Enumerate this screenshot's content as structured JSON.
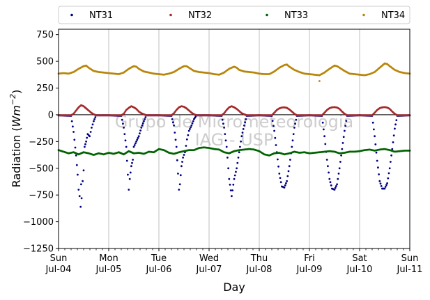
{
  "chart_data": {
    "type": "scatter",
    "title": "",
    "xlabel": "Day",
    "ylabel": "Radiation (Wm⁻²)",
    "ylabel_parts": {
      "prefix": "Radiation (",
      "base": "Wm",
      "exp": "−2",
      "suffix": ")"
    },
    "xlim": [
      0,
      7
    ],
    "ylim": [
      -1250,
      800
    ],
    "yticks": [
      -1250,
      -1000,
      -750,
      -500,
      -250,
      0,
      250,
      500,
      750
    ],
    "ytick_labels": [
      "−1250",
      "−1000",
      "−750",
      "−500",
      "−250",
      "0",
      "250",
      "500",
      "750"
    ],
    "xticks": [
      {
        "day": "Sun",
        "date": "Jul-04"
      },
      {
        "day": "Mon",
        "date": "Jul-05"
      },
      {
        "day": "Tue",
        "date": "Jul-06"
      },
      {
        "day": "Wed",
        "date": "Jul-07"
      },
      {
        "day": "Thu",
        "date": "Jul-08"
      },
      {
        "day": "Fri",
        "date": "Jul-09"
      },
      {
        "day": "Sat",
        "date": "Jul-10"
      },
      {
        "day": "Sun",
        "date": "Jul-11"
      }
    ],
    "grid": "vertical",
    "legend_placement": "above plot, single row",
    "watermark": [
      "Grupo de Micrometeorologia",
      "IAG - USP"
    ],
    "series": [
      {
        "name": "NT31",
        "color": "#000080",
        "x": [
          0.0,
          0.25,
          0.3,
          0.35,
          0.38,
          0.4,
          0.42,
          0.44,
          0.45,
          0.46,
          0.48,
          0.5,
          0.52,
          0.55,
          0.58,
          0.62,
          0.66,
          0.7,
          0.75,
          1.0,
          1.25,
          1.3,
          1.35,
          1.38,
          1.4,
          1.42,
          1.45,
          1.48,
          1.5,
          1.55,
          1.6,
          1.65,
          1.7,
          1.75,
          2.0,
          2.25,
          2.3,
          2.35,
          2.38,
          2.4,
          2.42,
          2.45,
          2.48,
          2.52,
          2.56,
          2.6,
          2.65,
          2.7,
          2.75,
          3.0,
          3.25,
          3.3,
          3.35,
          3.4,
          3.45,
          3.5,
          3.55,
          3.6,
          3.65,
          3.7,
          3.75,
          4.0,
          4.25,
          4.3,
          4.35,
          4.4,
          4.45,
          4.5,
          4.55,
          4.6,
          4.65,
          4.7,
          4.75,
          5.0,
          5.25,
          5.3,
          5.35,
          5.4,
          5.45,
          5.5,
          5.55,
          5.6,
          5.65,
          5.7,
          5.75,
          6.0,
          6.25,
          6.3,
          6.35,
          6.4,
          6.45,
          6.5,
          6.55,
          6.6,
          6.65,
          6.7,
          6.75,
          7.0
        ],
        "y": [
          -5,
          -10,
          -160,
          -380,
          -560,
          -700,
          -760,
          -860,
          -650,
          -780,
          -620,
          -520,
          -300,
          -250,
          -180,
          -200,
          -120,
          -60,
          -5,
          -5,
          -10,
          -120,
          -300,
          -560,
          -700,
          -600,
          -480,
          -420,
          -300,
          -250,
          -200,
          -120,
          -60,
          -5,
          -5,
          -10,
          -100,
          -300,
          -550,
          -700,
          -650,
          -480,
          -400,
          -350,
          -230,
          -150,
          -100,
          -40,
          -5,
          -5,
          -10,
          -120,
          -300,
          -600,
          -760,
          -600,
          -500,
          -350,
          -200,
          -100,
          -10,
          -5,
          -10,
          -150,
          -350,
          -550,
          -670,
          -680,
          -620,
          -480,
          -300,
          -120,
          -10,
          -5,
          -10,
          -200,
          -420,
          -600,
          -690,
          -700,
          -650,
          -500,
          -320,
          -150,
          -10,
          -5,
          -10,
          -200,
          -430,
          -620,
          -690,
          -690,
          -640,
          -500,
          -320,
          -130,
          -10,
          -5
        ]
      },
      {
        "name": "NT32",
        "color": "#a52a2a",
        "x": [
          0.0,
          0.25,
          0.3,
          0.35,
          0.4,
          0.45,
          0.5,
          0.55,
          0.6,
          0.65,
          0.7,
          0.75,
          1.0,
          1.25,
          1.3,
          1.35,
          1.4,
          1.45,
          1.5,
          1.55,
          1.6,
          1.65,
          1.7,
          1.75,
          2.0,
          2.25,
          2.3,
          2.35,
          2.4,
          2.45,
          2.5,
          2.55,
          2.6,
          2.65,
          2.7,
          2.75,
          3.0,
          3.25,
          3.3,
          3.35,
          3.4,
          3.45,
          3.5,
          3.55,
          3.6,
          3.65,
          3.7,
          3.75,
          4.0,
          4.25,
          4.3,
          4.35,
          4.4,
          4.45,
          4.5,
          4.55,
          4.6,
          4.65,
          4.7,
          4.75,
          5.0,
          5.25,
          5.3,
          5.35,
          5.4,
          5.45,
          5.5,
          5.55,
          5.6,
          5.65,
          5.7,
          5.75,
          6.0,
          6.25,
          6.3,
          6.35,
          6.4,
          6.45,
          6.5,
          6.55,
          6.6,
          6.65,
          6.7,
          6.75,
          7.0
        ],
        "y": [
          -5,
          -5,
          10,
          40,
          70,
          90,
          80,
          60,
          40,
          20,
          5,
          -5,
          -5,
          -5,
          10,
          45,
          65,
          80,
          70,
          55,
          30,
          15,
          5,
          -5,
          -5,
          -5,
          15,
          45,
          70,
          80,
          75,
          60,
          40,
          20,
          5,
          -5,
          -5,
          -5,
          15,
          45,
          70,
          80,
          70,
          55,
          35,
          15,
          5,
          -5,
          -5,
          -5,
          20,
          45,
          60,
          68,
          70,
          65,
          50,
          30,
          10,
          -5,
          -5,
          -5,
          20,
          45,
          62,
          70,
          72,
          68,
          55,
          30,
          10,
          -5,
          -5,
          -5,
          20,
          45,
          62,
          70,
          72,
          68,
          55,
          30,
          10,
          -5,
          -5
        ]
      },
      {
        "name": "NT33",
        "color": "#006400",
        "x": [
          0.0,
          0.1,
          0.2,
          0.3,
          0.4,
          0.5,
          0.6,
          0.7,
          0.8,
          0.9,
          1.0,
          1.1,
          1.2,
          1.3,
          1.4,
          1.5,
          1.6,
          1.7,
          1.8,
          1.9,
          2.0,
          2.1,
          2.2,
          2.3,
          2.4,
          2.5,
          2.6,
          2.7,
          2.8,
          2.9,
          3.0,
          3.1,
          3.2,
          3.3,
          3.4,
          3.5,
          3.6,
          3.7,
          3.8,
          3.9,
          4.0,
          4.1,
          4.2,
          4.3,
          4.4,
          4.5,
          4.6,
          4.7,
          4.8,
          4.9,
          5.0,
          5.1,
          5.2,
          5.3,
          5.4,
          5.5,
          5.6,
          5.7,
          5.8,
          5.9,
          6.0,
          6.1,
          6.2,
          6.3,
          6.4,
          6.5,
          6.6,
          6.7,
          6.8,
          6.9,
          7.0
        ],
        "y": [
          -330,
          -345,
          -360,
          -350,
          -370,
          -350,
          -360,
          -375,
          -360,
          -370,
          -355,
          -365,
          -350,
          -370,
          -340,
          -360,
          -355,
          -365,
          -345,
          -350,
          -320,
          -330,
          -355,
          -365,
          -350,
          -340,
          -330,
          -330,
          -310,
          -305,
          -310,
          -320,
          -325,
          -350,
          -360,
          -340,
          -330,
          -325,
          -320,
          -325,
          -340,
          -370,
          -380,
          -360,
          -355,
          -370,
          -360,
          -345,
          -355,
          -350,
          -360,
          -355,
          -350,
          -345,
          -340,
          -345,
          -360,
          -355,
          -345,
          -345,
          -340,
          -330,
          -325,
          -335,
          -325,
          -320,
          -330,
          -345,
          -340,
          -335,
          -335
        ]
      },
      {
        "name": "NT34",
        "color": "#b8860b",
        "x": [
          0.0,
          0.1,
          0.2,
          0.3,
          0.4,
          0.5,
          0.55,
          0.6,
          0.7,
          0.8,
          0.9,
          1.0,
          1.1,
          1.2,
          1.3,
          1.4,
          1.5,
          1.55,
          1.6,
          1.7,
          1.8,
          1.9,
          2.0,
          2.1,
          2.2,
          2.3,
          2.4,
          2.5,
          2.55,
          2.6,
          2.7,
          2.8,
          2.9,
          3.0,
          3.1,
          3.2,
          3.3,
          3.4,
          3.5,
          3.55,
          3.6,
          3.7,
          3.8,
          3.9,
          4.0,
          4.1,
          4.2,
          4.3,
          4.4,
          4.5,
          4.55,
          4.6,
          4.7,
          4.8,
          4.9,
          5.0,
          5.1,
          5.2,
          5.3,
          5.4,
          5.5,
          5.55,
          5.6,
          5.7,
          5.8,
          5.9,
          6.0,
          6.1,
          6.2,
          6.3,
          6.4,
          6.5,
          6.55,
          6.6,
          6.7,
          6.8,
          6.9,
          7.0,
          5.2
        ],
        "y": [
          385,
          390,
          385,
          400,
          430,
          455,
          460,
          440,
          410,
          400,
          395,
          390,
          385,
          380,
          395,
          430,
          455,
          450,
          430,
          405,
          395,
          385,
          380,
          375,
          385,
          400,
          430,
          455,
          455,
          440,
          410,
          400,
          395,
          390,
          380,
          375,
          395,
          430,
          450,
          440,
          420,
          405,
          400,
          395,
          385,
          380,
          380,
          405,
          440,
          465,
          470,
          450,
          420,
          400,
          385,
          380,
          375,
          370,
          395,
          430,
          460,
          455,
          440,
          410,
          385,
          380,
          375,
          370,
          380,
          400,
          440,
          480,
          475,
          455,
          420,
          400,
          390,
          385,
          315
        ]
      }
    ]
  }
}
